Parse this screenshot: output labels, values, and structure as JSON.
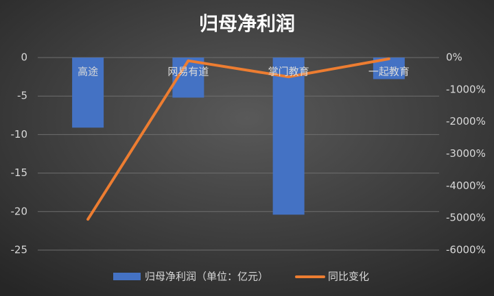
{
  "chart_data": {
    "type": "bar-line",
    "title": "归母净利润",
    "categories": [
      "高途",
      "网易有道",
      "掌门教育",
      "一起教育"
    ],
    "series": [
      {
        "name": "归母净利润（单位：亿元）",
        "type": "bar",
        "color": "#4472c4",
        "values": [
          -9.1,
          -5.2,
          -20.4,
          -2.8
        ]
      },
      {
        "name": "同比变化",
        "type": "line",
        "color": "#ed7d31",
        "axis": "y2",
        "values": [
          -5040,
          -100,
          -600,
          -40
        ]
      }
    ],
    "ylim": [
      -25,
      0
    ],
    "yticks": [
      0,
      -5,
      -10,
      -15,
      -20,
      -25
    ],
    "y2lim": [
      -6000,
      0
    ],
    "y2ticks": [
      {
        "value": 0,
        "label": "0%"
      },
      {
        "value": -1000,
        "label": "-1000%"
      },
      {
        "value": -2000,
        "label": "-2000%"
      },
      {
        "value": -3000,
        "label": "-3000%"
      },
      {
        "value": -4000,
        "label": "-4000%"
      },
      {
        "value": -5000,
        "label": "-5000%"
      },
      {
        "value": -6000,
        "label": "-6000%"
      }
    ],
    "grid": true,
    "legend": "bottom"
  }
}
